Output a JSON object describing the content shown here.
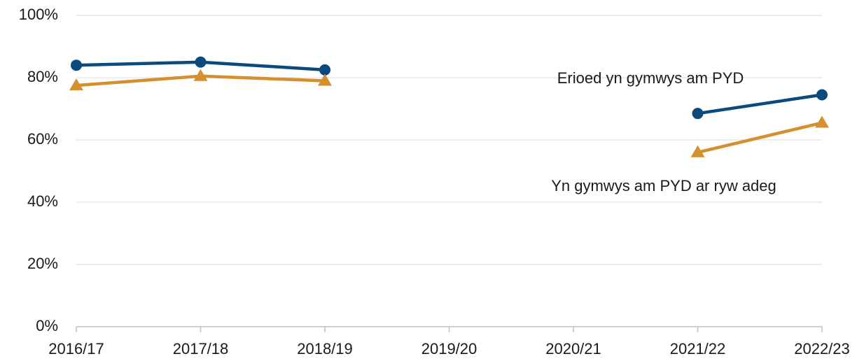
{
  "chart_data": {
    "type": "line",
    "categories": [
      "2016/17",
      "2017/18",
      "2018/19",
      "2019/20",
      "2020/21",
      "2021/22",
      "2022/23"
    ],
    "series": [
      {
        "name": "Erioed yn gymwys am PYD",
        "color": "#0b4a7c",
        "marker": "circle",
        "values": [
          84,
          85,
          82.5,
          null,
          null,
          68.5,
          74.5
        ]
      },
      {
        "name": "Yn gymwys am PYD ar ryw adeg",
        "color": "#d48f2f",
        "marker": "triangle",
        "values": [
          77.5,
          80.5,
          79,
          null,
          null,
          56,
          65.5
        ]
      }
    ],
    "ylim": [
      0,
      100
    ],
    "yticks": [
      {
        "value": 0,
        "label": "0%"
      },
      {
        "value": 20,
        "label": "20%"
      },
      {
        "value": 40,
        "label": "40%"
      },
      {
        "value": 60,
        "label": "60%"
      },
      {
        "value": 80,
        "label": "80%"
      },
      {
        "value": 100,
        "label": "100%"
      }
    ],
    "grid": true
  }
}
